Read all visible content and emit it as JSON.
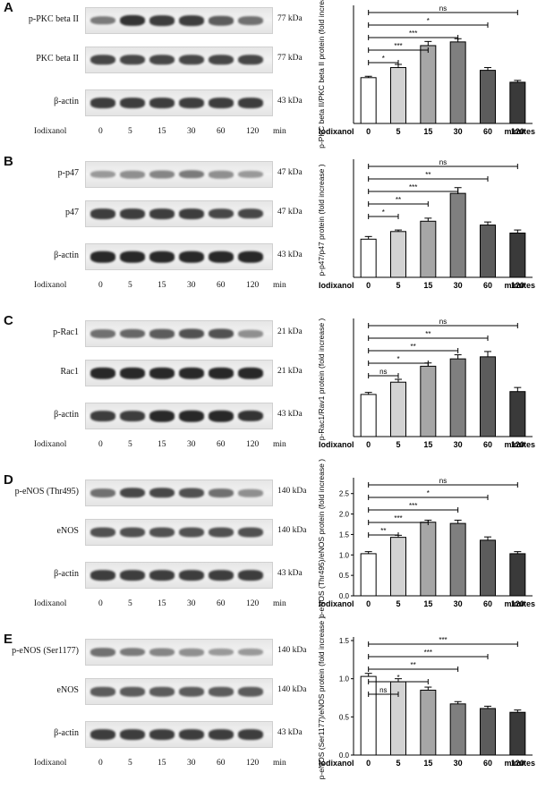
{
  "x_axis_leading_label": "Iodixanol",
  "x_axis_trailing_label": "minutes",
  "lane_axis_unit": "min",
  "time_points": [
    "0",
    "5",
    "15",
    "30",
    "60",
    "120"
  ],
  "panels": [
    {
      "letter": "A",
      "blots": [
        {
          "label": "p-PKC beta II",
          "kda": "77 kDa",
          "intensity": [
            0.55,
            0.9,
            0.85,
            0.85,
            0.7,
            0.6
          ]
        },
        {
          "label": "PKC beta II",
          "kda": "77 kDa",
          "intensity": [
            0.8,
            0.8,
            0.8,
            0.8,
            0.8,
            0.8
          ]
        },
        {
          "label": "β-actin",
          "kda": "43 kDa",
          "intensity": [
            0.85,
            0.85,
            0.85,
            0.85,
            0.85,
            0.85
          ]
        }
      ]
    },
    {
      "letter": "B",
      "blots": [
        {
          "label": "p-p47",
          "kda": "47 kDa",
          "intensity": [
            0.4,
            0.45,
            0.5,
            0.55,
            0.45,
            0.4
          ]
        },
        {
          "label": "p47",
          "kda": "47 kDa",
          "intensity": [
            0.85,
            0.85,
            0.85,
            0.85,
            0.8,
            0.8
          ]
        },
        {
          "label": "β-actin",
          "kda": "43 kDa",
          "intensity": [
            0.95,
            0.95,
            0.95,
            0.95,
            0.95,
            0.95
          ]
        }
      ]
    },
    {
      "letter": "C",
      "blots": [
        {
          "label": "p-Rac1",
          "kda": "21 kDa",
          "intensity": [
            0.6,
            0.65,
            0.7,
            0.75,
            0.75,
            0.45
          ]
        },
        {
          "label": "Rac1",
          "kda": "21 kDa",
          "intensity": [
            0.95,
            0.95,
            0.95,
            0.95,
            0.95,
            0.95
          ]
        },
        {
          "label": "β-actin",
          "kda": "43 kDa",
          "intensity": [
            0.85,
            0.85,
            0.95,
            0.95,
            0.95,
            0.9
          ]
        }
      ]
    },
    {
      "letter": "D",
      "blots": [
        {
          "label": "p-eNOS (Thr495)",
          "kda": "140 kDa",
          "intensity": [
            0.6,
            0.8,
            0.8,
            0.75,
            0.6,
            0.45
          ]
        },
        {
          "label": "eNOS",
          "kda": "140 kDa",
          "intensity": [
            0.75,
            0.75,
            0.75,
            0.75,
            0.75,
            0.75
          ]
        },
        {
          "label": "β-actin",
          "kda": "43 kDa",
          "intensity": [
            0.85,
            0.85,
            0.85,
            0.85,
            0.85,
            0.85
          ]
        }
      ]
    },
    {
      "letter": "E",
      "blots": [
        {
          "label": "p-eNOS (Ser1177)",
          "kda": "140 kDa",
          "intensity": [
            0.6,
            0.55,
            0.5,
            0.45,
            0.4,
            0.4
          ]
        },
        {
          "label": "eNOS",
          "kda": "140 kDa",
          "intensity": [
            0.7,
            0.7,
            0.7,
            0.7,
            0.7,
            0.7
          ]
        },
        {
          "label": "β-actin",
          "kda": "43 kDa",
          "intensity": [
            0.85,
            0.85,
            0.85,
            0.85,
            0.85,
            0.85
          ]
        }
      ]
    }
  ],
  "bar_colors": [
    "#ffffff",
    "#d3d3d3",
    "#a6a6a6",
    "#7f7f7f",
    "#5c5c5c",
    "#3a3a3a"
  ],
  "chart_data": [
    {
      "type": "bar",
      "categories": [
        "0",
        "5",
        "15",
        "30",
        "60",
        "120"
      ],
      "values": [
        1.0,
        1.22,
        1.7,
        1.78,
        1.16,
        0.9
      ],
      "errors": [
        0.03,
        0.07,
        0.09,
        0.07,
        0.06,
        0.04
      ],
      "ylabel": "p-PKC beta II/PKC beta II protein (fold increase )",
      "xlabel": "Iodixanol … minutes",
      "ylim": [
        0,
        2.5
      ],
      "yticks": [],
      "significance": [
        {
          "to": "5",
          "label": "*"
        },
        {
          "to": "15",
          "label": "***"
        },
        {
          "to": "30",
          "label": "***"
        },
        {
          "to": "60",
          "label": "*"
        },
        {
          "to": "120",
          "label": "ns"
        }
      ]
    },
    {
      "type": "bar",
      "categories": [
        "0",
        "5",
        "15",
        "30",
        "60",
        "120"
      ],
      "values": [
        1.0,
        1.2,
        1.47,
        2.2,
        1.37,
        1.16
      ],
      "errors": [
        0.07,
        0.04,
        0.08,
        0.15,
        0.08,
        0.08
      ],
      "ylabel": "p-p47/p47 protein (fold increase )",
      "xlabel": "Iodixanol … minutes",
      "ylim": [
        0,
        3.0
      ],
      "yticks": [],
      "significance": [
        {
          "to": "5",
          "label": "*"
        },
        {
          "to": "15",
          "label": "**"
        },
        {
          "to": "30",
          "label": "***"
        },
        {
          "to": "60",
          "label": "**"
        },
        {
          "to": "120",
          "label": "ns"
        }
      ]
    },
    {
      "type": "bar",
      "categories": [
        "0",
        "5",
        "15",
        "30",
        "60",
        "120"
      ],
      "values": [
        1.03,
        1.33,
        1.72,
        1.9,
        1.95,
        1.1
      ],
      "errors": [
        0.05,
        0.07,
        0.08,
        0.1,
        0.13,
        0.1
      ],
      "ylabel": "p-Rac1/Rav1 protein (fold increase )",
      "xlabel": "Iodixanol … minutes",
      "ylim": [
        0,
        2.8
      ],
      "yticks": [],
      "significance": [
        {
          "to": "5",
          "label": "ns"
        },
        {
          "to": "15",
          "label": "*"
        },
        {
          "to": "30",
          "label": "**"
        },
        {
          "to": "60",
          "label": "**"
        },
        {
          "to": "120",
          "label": "ns"
        }
      ]
    },
    {
      "type": "bar",
      "categories": [
        "0",
        "5",
        "15",
        "30",
        "60",
        "120"
      ],
      "values": [
        1.03,
        1.43,
        1.8,
        1.77,
        1.36,
        1.03
      ],
      "errors": [
        0.05,
        0.05,
        0.05,
        0.08,
        0.08,
        0.05
      ],
      "ylabel": "p-eNOS (Thr495)/eNOS protein (fold increase )",
      "xlabel": "Iodixanol … minutes",
      "ylim": [
        0,
        2.8
      ],
      "yticks": [
        0.0,
        0.5,
        1.0,
        1.5,
        2.0,
        2.5
      ],
      "significance": [
        {
          "to": "5",
          "label": "**"
        },
        {
          "to": "15",
          "label": "***"
        },
        {
          "to": "30",
          "label": "***"
        },
        {
          "to": "60",
          "label": "*"
        },
        {
          "to": "120",
          "label": "ns"
        }
      ]
    },
    {
      "type": "bar",
      "categories": [
        "0",
        "5",
        "15",
        "30",
        "60",
        "120"
      ],
      "values": [
        1.03,
        0.96,
        0.85,
        0.67,
        0.61,
        0.56
      ],
      "errors": [
        0.04,
        0.04,
        0.04,
        0.03,
        0.03,
        0.03
      ],
      "ylabel": "p-eNOS (Ser1177)/eNOS protein (fold increase )",
      "xlabel": "Iodixanol … minutes",
      "ylim": [
        0,
        1.5
      ],
      "yticks": [
        0.0,
        0.5,
        1.0,
        1.5
      ],
      "significance": [
        {
          "to": "5",
          "label": "ns"
        },
        {
          "to": "15",
          "label": "*"
        },
        {
          "to": "30",
          "label": "**"
        },
        {
          "to": "60",
          "label": "***"
        },
        {
          "to": "120",
          "label": "***"
        }
      ]
    }
  ]
}
